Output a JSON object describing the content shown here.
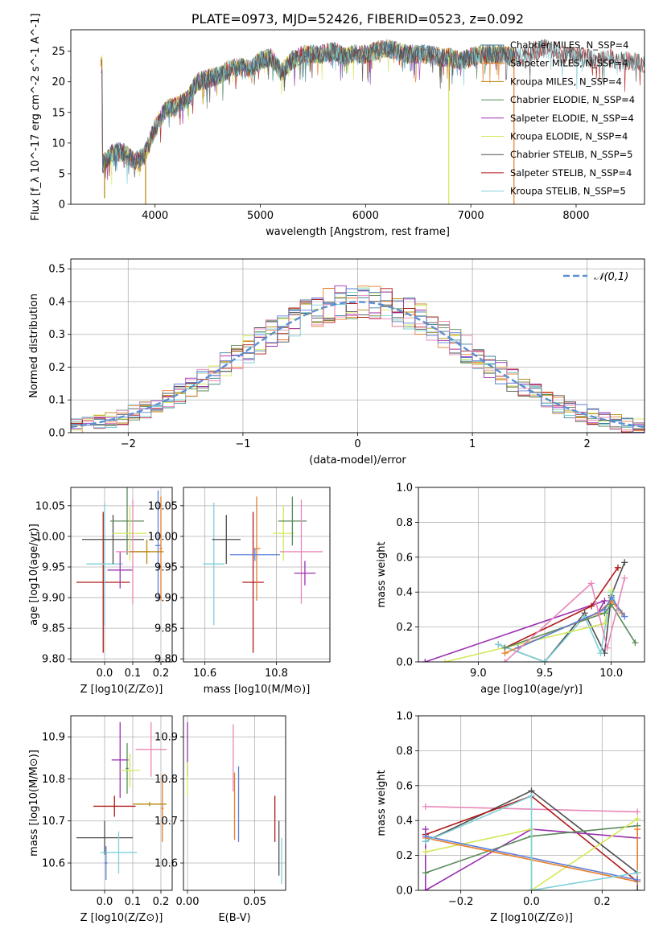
{
  "colors": {
    "Chabrier MILES": "#3a7f98",
    "Salpeter MILES": "#e87d2a",
    "Kroupa MILES": "#b8860b",
    "Chabrier ELODIE": "#5a8a5a",
    "Salpeter ELODIE": "#9b30b0",
    "Kroupa ELODIE": "#d4e85a",
    "Chabrier STELIB": "#4d4d4d",
    "Salpeter STELIB": "#b01818",
    "Kroupa STELIB": "#7fd0d8",
    "extra_blue": "#5b7fd6",
    "extra_pink": "#e887b8",
    "normal_curve": "#5b8fd0"
  },
  "chart_data": [
    {
      "id": "spectrum",
      "type": "line",
      "title": "PLATE=0973, MJD=52426, FIBERID=0523, z=0.092",
      "xlabel": "wavelength [Angstrom, rest frame]",
      "ylabel": "Flux [f_λ 10^-17 erg cm^-2 s^-1 A^-1]",
      "xlim": [
        3200,
        8650
      ],
      "ylim": [
        0,
        28.5
      ],
      "xticks": [
        4000,
        5000,
        6000,
        7000,
        8000
      ],
      "yticks": [
        0,
        5,
        10,
        15,
        20,
        25
      ],
      "grid": false,
      "legend_position": "top-right",
      "legend": [
        "Chabrier MILES, N_SSP=4",
        "Salpeter MILES, N_SSP=4",
        "Kroupa MILES, N_SSP=4",
        "Chabrier ELODIE, N_SSP=4",
        "Salpeter ELODIE, N_SSP=4",
        "Kroupa ELODIE, N_SSP=4",
        "Chabrier STELIB, N_SSP=5",
        "Salpeter STELIB, N_SSP=4",
        "Kroupa STELIB, N_SSP=5"
      ],
      "envelope": {
        "x": [
          3500,
          3600,
          3700,
          3800,
          3900,
          4000,
          4100,
          4200,
          4300,
          4400,
          4500,
          4600,
          4700,
          4800,
          4900,
          5000,
          5100,
          5200,
          5300,
          5400,
          5500,
          5600,
          5700,
          5800,
          5900,
          6000,
          6100,
          6200,
          6300,
          6400,
          6500,
          6600,
          6700,
          6800,
          6900,
          7000,
          7100,
          7200,
          7300,
          7400,
          7500,
          7600,
          7700,
          7800,
          7900,
          8000,
          8100,
          8200,
          8300,
          8400,
          8500,
          8600
        ],
        "y": [
          6.5,
          8.5,
          8.5,
          7.0,
          8.0,
          12.5,
          15.5,
          16.0,
          17.0,
          20.0,
          20.5,
          21.0,
          22.0,
          22.5,
          22.0,
          23.5,
          24.0,
          21.5,
          23.5,
          24.5,
          24.5,
          24.5,
          25.0,
          24.0,
          24.5,
          24.5,
          25.0,
          25.5,
          25.0,
          24.5,
          24.5,
          24.5,
          24.0,
          24.0,
          23.5,
          24.0,
          24.5,
          24.5,
          24.5,
          24.0,
          24.5,
          25.0,
          25.5,
          25.0,
          24.5,
          24.0,
          24.0,
          23.5,
          24.0,
          23.5,
          23.5,
          23.0
        ]
      },
      "spikes": [
        {
          "x": 3520,
          "y": 1.0
        },
        {
          "x": 3910,
          "y": 0.0
        },
        {
          "x": 6790,
          "y": 0.0
        },
        {
          "x": 7410,
          "y": 0.0
        }
      ]
    },
    {
      "id": "residual_hist",
      "type": "histogram",
      "xlabel": "(data-model)/error",
      "ylabel": "Normed distribution",
      "xlim": [
        -2.5,
        2.5
      ],
      "ylim": [
        0,
        0.53
      ],
      "xticks": [
        -2,
        -1,
        0,
        1,
        2
      ],
      "yticks": [
        0.0,
        0.1,
        0.2,
        0.3,
        0.4,
        0.5
      ],
      "grid": true,
      "legend_position": "top-right",
      "legend": [
        "𝒩(0,1)"
      ],
      "bin_width": 0.1,
      "bin_start": -2.5
    },
    {
      "id": "age_vs_Z",
      "type": "errorbar",
      "xlabel": "Z [log10(Z/Z⊙)]",
      "ylabel": "age  [log10(age/yr)]",
      "xlim": [
        -0.12,
        0.24
      ],
      "ylim": [
        9.795,
        10.08
      ],
      "xticks": [
        0.0,
        0.1,
        0.2
      ],
      "yticks": [
        9.8,
        9.85,
        9.9,
        9.95,
        10.0,
        10.05
      ],
      "grid": true,
      "points": [
        {
          "series": "Salpeter STELIB",
          "x": -0.005,
          "xerr": 0.095,
          "y": 9.925,
          "yerr": 0.115
        },
        {
          "series": "Kroupa STELIB",
          "x": 0.0,
          "xerr": 0.065,
          "y": 9.955,
          "yerr": 0.1
        },
        {
          "series": "Chabrier STELIB",
          "x": 0.03,
          "xerr": 0.11,
          "y": 9.995,
          "yerr": 0.04
        },
        {
          "series": "Salpeter ELODIE",
          "x": 0.055,
          "xerr": 0.045,
          "y": 9.945,
          "yerr": 0.03
        },
        {
          "series": "Chabrier ELODIE",
          "x": 0.08,
          "xerr": 0.06,
          "y": 10.025,
          "yerr": 0.055
        },
        {
          "series": "Kroupa ELODIE",
          "x": 0.09,
          "xerr": 0.06,
          "y": 10.005,
          "yerr": 0.045
        },
        {
          "series": "extra_pink",
          "x": 0.1,
          "xerr": 0.06,
          "y": 9.975,
          "yerr": 0.085
        },
        {
          "series": "extra_blue",
          "x": 0.19,
          "xerr": 0.01,
          "y": 9.985,
          "yerr": 0.09
        },
        {
          "series": "Salpeter MILES",
          "x": 0.2,
          "xerr": 0.005,
          "y": 9.98,
          "yerr": 0.085
        },
        {
          "series": "Kroupa MILES",
          "x": 0.15,
          "xerr": 0.06,
          "y": 9.975,
          "yerr": 0.02
        }
      ]
    },
    {
      "id": "age_vs_mass",
      "type": "errorbar",
      "xlabel": "mass [log10(M/M⊙)]",
      "xlim": [
        10.54,
        10.95
      ],
      "ylim": [
        9.795,
        10.08
      ],
      "xticks": [
        10.6,
        10.8
      ],
      "yticks": [
        9.8,
        9.85,
        9.9,
        9.95,
        10.0,
        10.05
      ],
      "grid": true,
      "points": [
        {
          "series": "Kroupa STELIB",
          "x": 10.625,
          "xerr": 0.03,
          "y": 9.955,
          "yerr": 0.1
        },
        {
          "series": "Chabrier STELIB",
          "x": 10.66,
          "xerr": 0.04,
          "y": 9.995,
          "yerr": 0.04
        },
        {
          "series": "Salpeter STELIB",
          "x": 10.735,
          "xerr": 0.03,
          "y": 9.925,
          "yerr": 0.115
        },
        {
          "series": "Salpeter MILES",
          "x": 10.745,
          "xerr": 0.01,
          "y": 9.98,
          "yerr": 0.085
        },
        {
          "series": "extra_blue",
          "x": 10.74,
          "xerr": 0.07,
          "y": 9.97,
          "yerr": 0.01
        },
        {
          "series": "Kroupa ELODIE",
          "x": 10.82,
          "xerr": 0.03,
          "y": 10.005,
          "yerr": 0.045
        },
        {
          "series": "Chabrier ELODIE",
          "x": 10.845,
          "xerr": 0.04,
          "y": 10.025,
          "yerr": 0.04
        },
        {
          "series": "extra_pink",
          "x": 10.87,
          "xerr": 0.06,
          "y": 9.975,
          "yerr": 0.085
        },
        {
          "series": "Salpeter ELODIE",
          "x": 10.88,
          "xerr": 0.03,
          "y": 9.94,
          "yerr": 0.02
        }
      ]
    },
    {
      "id": "weight_vs_age",
      "type": "line",
      "xlabel": "age  [log10(age/yr)]",
      "ylabel": "mass weight",
      "xlim": [
        8.55,
        10.25
      ],
      "ylim": [
        0,
        1.0
      ],
      "xticks": [
        9.0,
        9.5,
        10.0
      ],
      "yticks": [
        0.0,
        0.2,
        0.4,
        0.6,
        0.8,
        1.0
      ],
      "grid": true,
      "series": [
        {
          "name": "Salpeter ELODIE",
          "points": [
            [
              8.6,
              0.0
            ],
            [
              9.95,
              0.35
            ],
            [
              9.9,
              0.28
            ]
          ]
        },
        {
          "name": "Salpeter STELIB",
          "points": [
            [
              9.2,
              0.08
            ],
            [
              9.85,
              0.32
            ],
            [
              10.05,
              0.54
            ]
          ]
        },
        {
          "name": "Chabrier STELIB",
          "points": [
            [
              9.15,
              0.1
            ],
            [
              9.5,
              0.0
            ],
            [
              9.8,
              0.28
            ],
            [
              9.95,
              0.05
            ],
            [
              10.0,
              0.38
            ],
            [
              10.1,
              0.57
            ]
          ]
        },
        {
          "name": "Kroupa STELIB",
          "points": [
            [
              9.15,
              0.1
            ],
            [
              9.5,
              0.0
            ],
            [
              9.8,
              0.26
            ],
            [
              9.92,
              0.05
            ],
            [
              10.0,
              0.4
            ],
            [
              10.05,
              0.3
            ]
          ]
        },
        {
          "name": "Kroupa ELODIE",
          "points": [
            [
              8.75,
              0.0
            ],
            [
              9.95,
              0.22
            ],
            [
              10.0,
              0.41
            ]
          ]
        },
        {
          "name": "Chabrier ELODIE",
          "points": [
            [
              9.2,
              0.08
            ],
            [
              9.95,
              0.28
            ],
            [
              10.0,
              0.33
            ],
            [
              10.18,
              0.11
            ]
          ]
        },
        {
          "name": "Salpeter MILES",
          "points": [
            [
              9.2,
              0.05
            ],
            [
              9.9,
              0.28
            ],
            [
              10.0,
              0.35
            ],
            [
              10.08,
              0.28
            ]
          ]
        },
        {
          "name": "extra_blue",
          "points": [
            [
              9.3,
              0.08
            ],
            [
              9.95,
              0.3
            ],
            [
              10.0,
              0.37
            ],
            [
              10.1,
              0.26
            ]
          ]
        },
        {
          "name": "extra_pink",
          "points": [
            [
              9.2,
              0.0
            ],
            [
              9.85,
              0.45
            ],
            [
              9.97,
              0.08
            ],
            [
              10.1,
              0.48
            ]
          ]
        }
      ]
    },
    {
      "id": "mass_vs_Z",
      "type": "errorbar",
      "xlabel": "Z [log10(Z/Z⊙)]",
      "ylabel": "mass [log10(M/M⊙)]",
      "xlim": [
        -0.12,
        0.24
      ],
      "ylim": [
        10.535,
        10.95
      ],
      "xticks": [
        0.0,
        0.1,
        0.2
      ],
      "yticks": [
        10.6,
        10.7,
        10.8,
        10.9
      ],
      "grid": true,
      "points": [
        {
          "series": "Chabrier STELIB",
          "x": 0.0,
          "xerr": 0.1,
          "y": 10.66,
          "yerr": 0.04
        },
        {
          "series": "Salpeter STELIB",
          "x": 0.035,
          "xerr": 0.075,
          "y": 10.735,
          "yerr": 0.025
        },
        {
          "series": "Kroupa STELIB",
          "x": 0.05,
          "xerr": 0.065,
          "y": 10.625,
          "yerr": 0.05
        },
        {
          "series": "extra_blue",
          "x": 0.005,
          "xerr": 0.005,
          "y": 10.6,
          "yerr": 0.04
        },
        {
          "series": "Salpeter ELODIE",
          "x": 0.055,
          "xerr": 0.03,
          "y": 10.845,
          "yerr": 0.09
        },
        {
          "series": "Chabrier ELODIE",
          "x": 0.08,
          "xerr": 0.005,
          "y": 10.825,
          "yerr": 0.06
        },
        {
          "series": "Kroupa ELODIE",
          "x": 0.09,
          "xerr": 0.035,
          "y": 10.82,
          "yerr": 0.04
        },
        {
          "series": "extra_pink",
          "x": 0.165,
          "xerr": 0.055,
          "y": 10.87,
          "yerr": 0.065
        },
        {
          "series": "Salpeter MILES",
          "x": 0.205,
          "xerr": 0.005,
          "y": 10.73,
          "yerr": 0.08
        },
        {
          "series": "Kroupa MILES",
          "x": 0.16,
          "xerr": 0.06,
          "y": 10.74,
          "yerr": 0.005
        }
      ]
    },
    {
      "id": "mass_vs_ebv",
      "type": "errorbar",
      "xlabel": "E(B-V)",
      "xlim": [
        -0.003,
        0.073
      ],
      "ylim": [
        10.535,
        10.95
      ],
      "xticks": [
        0.0,
        0.05
      ],
      "yticks": [
        10.6,
        10.7,
        10.8,
        10.9
      ],
      "grid": true,
      "points": [
        {
          "series": "Salpeter ELODIE",
          "x": 0.0,
          "y": 10.87,
          "yerr": 0.065
        },
        {
          "series": "Kroupa ELODIE",
          "x": 0.0,
          "y": 10.8,
          "yerr": 0.04
        },
        {
          "series": "extra_pink",
          "x": 0.034,
          "y": 10.85,
          "yerr": 0.08
        },
        {
          "series": "Salpeter MILES",
          "x": 0.035,
          "y": 10.735,
          "yerr": 0.08
        },
        {
          "series": "extra_blue",
          "x": 0.038,
          "y": 10.74,
          "yerr": 0.09
        },
        {
          "series": "Salpeter STELIB",
          "x": 0.065,
          "y": 10.705,
          "yerr": 0.055
        },
        {
          "series": "Chabrier STELIB",
          "x": 0.068,
          "y": 10.635,
          "yerr": 0.065
        },
        {
          "series": "Kroupa STELIB",
          "x": 0.07,
          "y": 10.605,
          "yerr": 0.055
        }
      ]
    },
    {
      "id": "weight_vs_Z",
      "type": "line",
      "xlabel": "Z [log10(Z/Z⊙)]",
      "ylabel": "mass weight",
      "xlim": [
        -0.32,
        0.32
      ],
      "ylim": [
        0,
        1.0
      ],
      "xticks": [
        -0.2,
        0.0,
        0.2
      ],
      "yticks": [
        0.0,
        0.2,
        0.4,
        0.6,
        0.8,
        1.0
      ],
      "grid": true,
      "series": [
        {
          "name": "extra_pink",
          "points": [
            [
              -0.3,
              0.48
            ],
            [
              0.3,
              0.45
            ]
          ]
        },
        {
          "name": "Chabrier STELIB",
          "points": [
            [
              -0.3,
              0.28
            ],
            [
              0.0,
              0.57
            ],
            [
              0.3,
              0.1
            ],
            [
              0.3,
              0.0
            ]
          ]
        },
        {
          "name": "Salpeter STELIB",
          "points": [
            [
              -0.3,
              0.32
            ],
            [
              0.0,
              0.54
            ],
            [
              0.3,
              0.05
            ],
            [
              0.3,
              0.1
            ]
          ]
        },
        {
          "name": "Salpeter ELODIE",
          "points": [
            [
              -0.3,
              0.35
            ],
            [
              -0.3,
              0.0
            ],
            [
              0.0,
              0.35
            ],
            [
              0.3,
              0.3
            ]
          ]
        },
        {
          "name": "Chabrier ELODIE",
          "points": [
            [
              -0.3,
              0.1
            ],
            [
              0.0,
              0.31
            ],
            [
              0.3,
              0.37
            ]
          ]
        },
        {
          "name": "Kroupa ELODIE",
          "points": [
            [
              -0.3,
              0.22
            ],
            [
              0.0,
              0.35
            ],
            [
              0.0,
              0.0
            ],
            [
              0.3,
              0.41
            ]
          ]
        },
        {
          "name": "Salpeter MILES",
          "points": [
            [
              -0.3,
              0.3
            ],
            [
              0.3,
              0.05
            ],
            [
              0.3,
              0.35
            ]
          ]
        },
        {
          "name": "extra_blue",
          "points": [
            [
              -0.3,
              0.31
            ],
            [
              0.3,
              0.06
            ]
          ]
        },
        {
          "name": "Kroupa STELIB",
          "points": [
            [
              -0.3,
              0.28
            ],
            [
              0.0,
              0.54
            ],
            [
              0.0,
              0.0
            ],
            [
              0.3,
              0.1
            ]
          ]
        }
      ]
    }
  ]
}
